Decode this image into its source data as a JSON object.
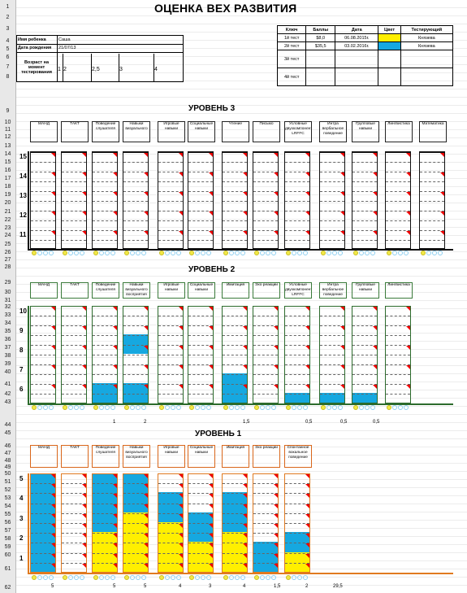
{
  "title": "ОЦЕНКА ВЕХ РАЗВИТИЯ",
  "row_numbers": [
    "1",
    "2",
    "3",
    "4",
    "5",
    "6",
    "7",
    "8",
    "9",
    "10",
    "11",
    "12",
    "13",
    "14",
    "15",
    "16",
    "17",
    "18",
    "19",
    "20",
    "21",
    "22",
    "23",
    "24",
    "25",
    "26",
    "27",
    "28",
    "29",
    "30",
    "31",
    "32",
    "33",
    "34",
    "35",
    "36",
    "37",
    "38",
    "39",
    "40",
    "41",
    "42",
    "43",
    "44",
    "45",
    "46",
    "47",
    "48",
    "49",
    "50",
    "51",
    "52",
    "53",
    "54",
    "55",
    "56",
    "57",
    "58",
    "59",
    "60",
    "61",
    "62"
  ],
  "child": {
    "name_label": "Имя ребенка",
    "name": "Саша",
    "dob_label": "Дата рождения",
    "dob": "21/07/13",
    "age_label": "Возраст на момент тестирования",
    "age_marks": [
      "1",
      "2",
      "2,5",
      "3",
      "4"
    ]
  },
  "key_table": {
    "headers": [
      "Ключ",
      "Баллы",
      "Дата",
      "Цвет",
      "Тестирующий"
    ],
    "rows": [
      {
        "key": "1й тест",
        "score": "$8,0",
        "date": "06.08.2015г.",
        "color": "#ffef00",
        "tester": "Князева"
      },
      {
        "key": "2й тест",
        "score": "$35,5",
        "date": "03.02.2016г.",
        "color": "#16a8e0",
        "tester": "Князева"
      },
      {
        "key": "3й тест",
        "score": "",
        "date": "",
        "color": "",
        "tester": ""
      },
      {
        "key": "4й тест",
        "score": "",
        "date": "",
        "color": "",
        "tester": ""
      }
    ]
  },
  "level3": {
    "title": "УРОВЕНЬ 3",
    "columns": [
      "МАНД",
      "ТАКТ",
      "Поведение слушателя",
      "Навыки визуального",
      "Игровые навыки",
      "Социальные навыки",
      "Чтение",
      "Письмо",
      "Условные двухкомпонентные LRFFC",
      "Интра вербальное поведение",
      "Групповые навыки",
      "Лингвистика",
      "Математика"
    ],
    "axis": [
      "15",
      "14",
      "13",
      "12",
      "11"
    ]
  },
  "level2": {
    "title": "УРОВЕНЬ 2",
    "columns": [
      "МАНД",
      "ТАКТ",
      "Поведение слушателя",
      "Навыки визуального восприятия",
      "Игровые навыки",
      "Социальные навыки",
      "Имитация",
      "Эхо реакции",
      "Условные двухкомпонентные LRFFC",
      "Интра вербальное поведение",
      "Групповые навыки",
      "Лингвистика"
    ],
    "axis": [
      "10",
      "9",
      "8",
      "7",
      "6"
    ],
    "scores": [
      "",
      "",
      "1",
      "2",
      "",
      "",
      "1,5",
      "",
      "0,5",
      "0,5",
      "0,5",
      ""
    ]
  },
  "level1": {
    "title": "УРОВЕНЬ 1",
    "columns": [
      "МАНД",
      "ТАКТ",
      "Поведение слушателя",
      "Навыки визуального восприятия",
      "Игровые навыки",
      "Социальные навыки",
      "Имитация",
      "Эхо реакции",
      "Спонтанное вокальное поведение"
    ],
    "axis": [
      "5",
      "4",
      "3",
      "2",
      "1"
    ],
    "scores": [
      "5",
      "",
      "5",
      "5",
      "4",
      "3",
      "4",
      "1,5",
      "2"
    ],
    "total": "29,5"
  }
}
